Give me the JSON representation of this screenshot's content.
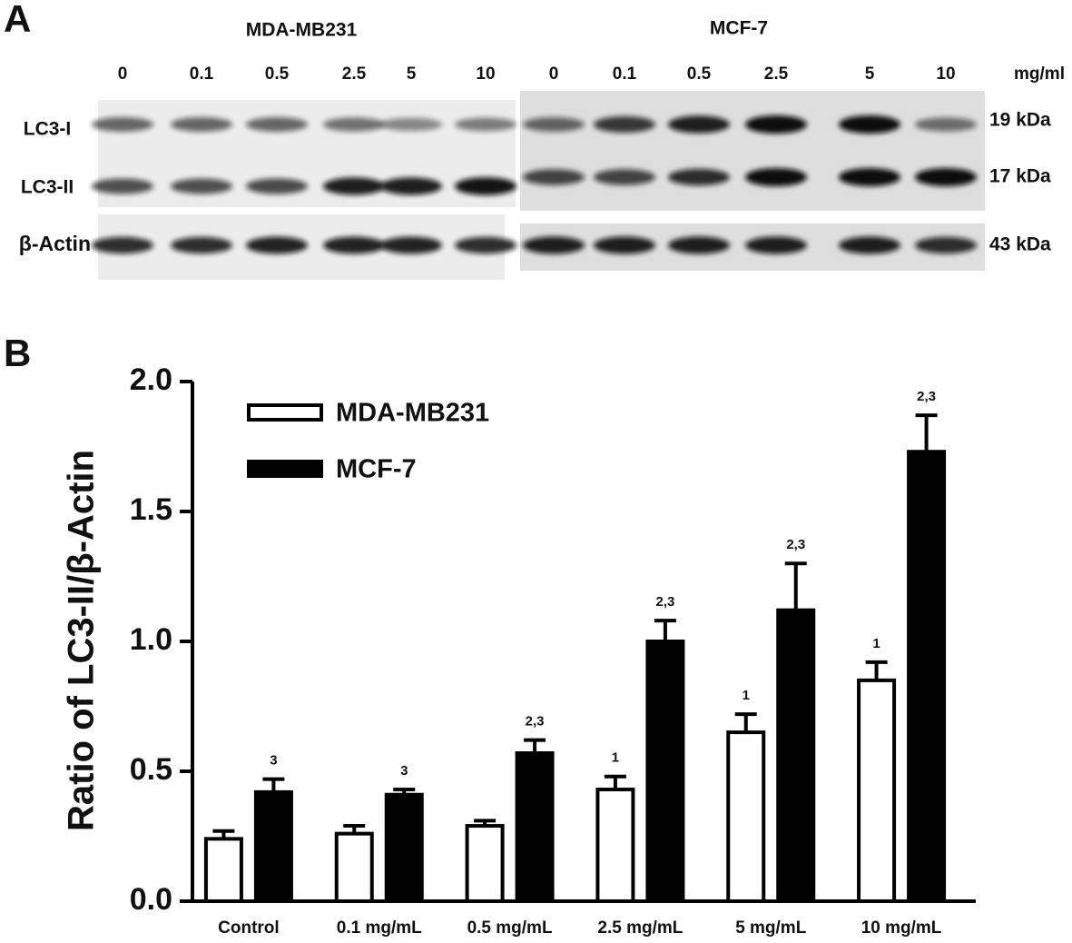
{
  "panel_a": {
    "label": "A",
    "cell_lines": [
      "MDA-MB231",
      "MCF-7"
    ],
    "doses": [
      "0",
      "0.1",
      "0.5",
      "2.5",
      "5",
      "10"
    ],
    "unit": "mg/ml",
    "bands": [
      "LC3-I",
      "LC3-II",
      "β-Actin"
    ],
    "weights": [
      "19 kDa",
      "17 kDa",
      "43 kDa"
    ]
  },
  "chart_data": {
    "type": "bar",
    "panel_label": "B",
    "y_label": "Ratio of LC3-II/β-Actin",
    "categories": [
      "Control",
      "0.1 mg/mL",
      "0.5 mg/mL",
      "2.5 mg/mL",
      "5 mg/mL",
      "10 mg/mL"
    ],
    "series": [
      {
        "name": "MDA-MB231",
        "color": "#ffffff",
        "values": [
          0.24,
          0.26,
          0.29,
          0.43,
          0.65,
          0.85
        ],
        "errors": [
          0.03,
          0.03,
          0.02,
          0.05,
          0.07,
          0.07
        ],
        "annotations": [
          null,
          null,
          null,
          "1",
          "1",
          "1"
        ]
      },
      {
        "name": "MCF-7",
        "color": "#000000",
        "values": [
          0.42,
          0.41,
          0.57,
          1.0,
          1.12,
          1.73
        ],
        "errors": [
          0.05,
          0.02,
          0.05,
          0.08,
          0.18,
          0.14
        ],
        "annotations": [
          "3",
          "3",
          "2,3",
          "2,3",
          "2,3",
          "2,3"
        ]
      }
    ],
    "ylim": [
      0,
      2
    ],
    "yticks": [
      {
        "value": 0,
        "label": "0.0"
      },
      {
        "value": 0.5,
        "label": "0.5"
      },
      {
        "value": 1,
        "label": "1.0"
      },
      {
        "value": 1.5,
        "label": "1.5"
      },
      {
        "value": 2,
        "label": "2.0"
      }
    ],
    "legend": "upper left"
  }
}
